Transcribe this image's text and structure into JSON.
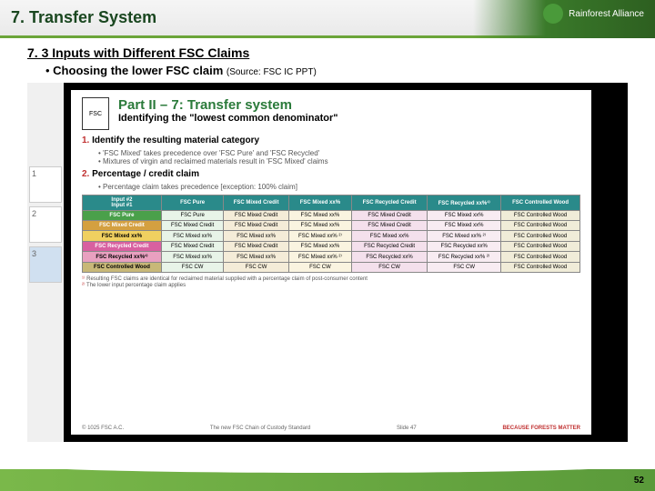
{
  "header": {
    "title": "7. Transfer System",
    "logo_text": "Rainforest Alliance"
  },
  "subtitle": "7. 3 Inputs with Different FSC Claims",
  "bullet": {
    "bold": "Choosing the lower FSC claim",
    "source": "(Source: FSC IC PPT)"
  },
  "thumbs": [
    "1",
    "2",
    "3"
  ],
  "inner": {
    "fsc": "FSC",
    "title_prefix": "Part II – 7: ",
    "title_main": "Transfer system",
    "subtitle": "Identifying the \"lowest common denominator\"",
    "steps": [
      {
        "num": "1.",
        "title": "Identify the resulting material category",
        "material_hilite": "material category",
        "bullets": [
          "'FSC Mixed' takes precedence over 'FSC Pure' and 'FSC Recycled'",
          "Mixtures of virgin and reclaimed materials result in 'FSC Mixed' claims"
        ]
      },
      {
        "num": "2.",
        "title": "Percentage / credit claim",
        "bullets": [
          "Percentage claim takes precedence [exception: 100% claim]"
        ]
      }
    ],
    "table": {
      "corner_top": "Input #2",
      "corner_left": "Input #1",
      "cols": [
        "FSC Pure",
        "FSC Mixed Credit",
        "FSC Mixed xx%",
        "FSC Recycled Credit",
        "FSC Recycled xx%¹⁾",
        "FSC Controlled Wood"
      ],
      "rows": [
        {
          "label": "FSC Pure",
          "class": "r-pure",
          "cells": [
            "FSC Pure",
            "FSC Mixed Credit",
            "FSC Mixed xx%",
            "FSC Mixed Credit",
            "FSC Mixed xx%",
            "FSC Controlled Wood"
          ]
        },
        {
          "label": "FSC Mixed Credit",
          "class": "r-mc",
          "cells": [
            "FSC Mixed Credit",
            "FSC Mixed Credit",
            "FSC Mixed xx%",
            "FSC Mixed Credit",
            "FSC Mixed xx%",
            "FSC Controlled Wood"
          ]
        },
        {
          "label": "FSC Mixed xx%",
          "class": "r-mx",
          "cells": [
            "FSC Mixed xx%",
            "FSC Mixed xx%",
            "FSC Mixed xx% ²⁾",
            "FSC Mixed xx%",
            "FSC Mixed xx% ²⁾",
            "FSC Controlled Wood"
          ]
        },
        {
          "label": "FSC Recycled Credit",
          "class": "r-rc",
          "cells": [
            "FSC Mixed Credit",
            "FSC Mixed Credit",
            "FSC Mixed xx%",
            "FSC Recycled Credit",
            "FSC Recycled xx%",
            "FSC Controlled Wood"
          ]
        },
        {
          "label": "FSC Recycled xx%¹⁾",
          "class": "r-rx",
          "cells": [
            "FSC Mixed xx%",
            "FSC Mixed xx%",
            "FSC Mixed xx% ²⁾",
            "FSC Recycled xx%",
            "FSC Recycled xx% ²⁾",
            "FSC Controlled Wood"
          ]
        },
        {
          "label": "FSC Controlled Wood",
          "class": "r-cw",
          "cells": [
            "FSC CW",
            "FSC CW",
            "FSC CW",
            "FSC CW",
            "FSC CW",
            "FSC Controlled Wood"
          ]
        }
      ],
      "col_classes": [
        "c-pure",
        "c-mc",
        "c-mx",
        "c-rc",
        "c-rx",
        "c-cw"
      ]
    },
    "footnotes": [
      {
        "n": "¹⁾",
        "t": "Resulting FSC claims are identical for reclaimed material supplied with a percentage claim of post-consumer content"
      },
      {
        "n": "²⁾",
        "t": "The lower input percentage claim applies"
      }
    ],
    "footer": {
      "left": "© 1025 FSC A.C.",
      "center": "The new FSC Chain of Custody Standard",
      "right": "Slide 47",
      "because": "BECAUSE FORESTS MATTER"
    }
  },
  "page_number": "52"
}
